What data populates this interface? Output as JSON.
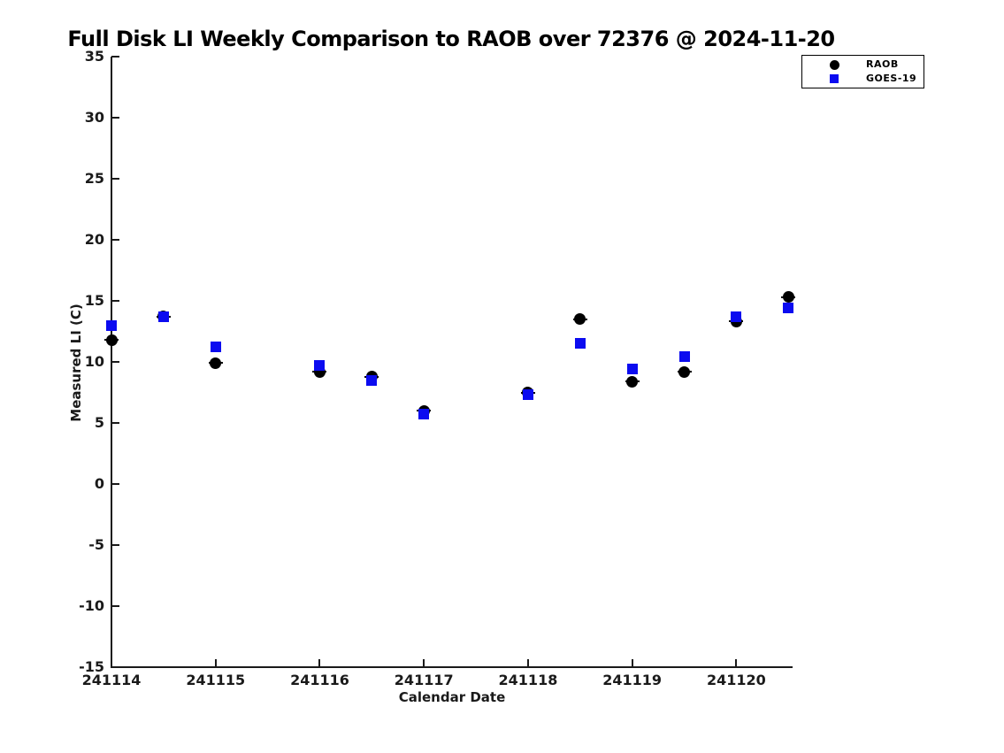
{
  "title": "Full Disk LI Weekly Comparison to RAOB over 72376 @ 2024-11-20",
  "colors": {
    "raob": "#000000",
    "goes19": "#0b0bf0",
    "axis": "#1a1a1a",
    "background": "#ffffff"
  },
  "chart_data": {
    "type": "scatter",
    "title": "Full Disk LI Weekly Comparison to RAOB over 72376 @ 2024-11-20",
    "xlabel": "Calendar Date",
    "ylabel": "Measured LI (C)",
    "xlim": [
      241114,
      241120.54
    ],
    "ylim": [
      -15,
      35
    ],
    "xticks": [
      241114,
      241115,
      241116,
      241117,
      241118,
      241119,
      241120
    ],
    "yticks": [
      -15,
      -10,
      -5,
      0,
      5,
      10,
      15,
      20,
      25,
      30,
      35
    ],
    "grid": false,
    "legend_position": "top-right-outside",
    "x": [
      241114,
      241114.5,
      241115,
      241116,
      241116.5,
      241117,
      241118,
      241118.5,
      241119,
      241119.5,
      241120,
      241120.5
    ],
    "series": [
      {
        "name": "RAOB",
        "marker": "circle",
        "color": "#000000",
        "values": [
          11.8,
          13.7,
          9.9,
          9.2,
          8.8,
          6.0,
          7.5,
          13.5,
          8.4,
          9.2,
          13.3,
          15.3
        ]
      },
      {
        "name": "GOES-19",
        "marker": "square",
        "color": "#0b0bf0",
        "values": [
          13.0,
          13.7,
          11.2,
          9.7,
          8.5,
          5.7,
          7.3,
          11.5,
          9.4,
          10.4,
          13.7,
          14.4
        ]
      }
    ]
  }
}
